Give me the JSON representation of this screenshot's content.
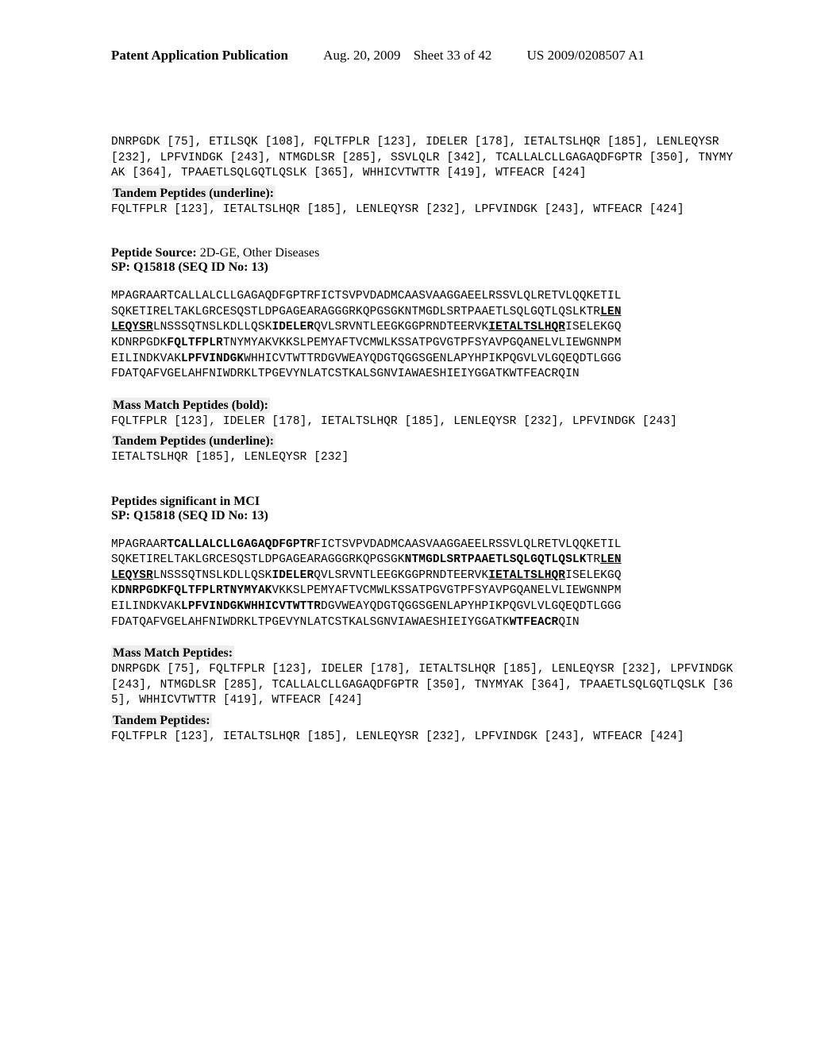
{
  "header": {
    "left": "Patent Application Publication",
    "date": "Aug. 20, 2009",
    "sheet": "Sheet 33 of 42",
    "pub": "US 2009/0208507 A1"
  },
  "block1": {
    "peptides": "DNRPGDK [75], ETILSQK [108], FQLTFPLR [123], IDELER [178], IETALTSLHQR [185], LENLEQYSR [232], LPFVINDGK [243], NTMGDLSR [285], SSVLQLR [342], TCALLALCLLGAGAQDFGPTR [350], TNYMYAK [364], TPAAETLSQLGQTLQSLK [365], WHHICVTWTTR [419], WTFEACR [424]"
  },
  "block1_tandem": {
    "heading": "Tandem Peptides (underline):",
    "peptides": "FQLTFPLR [123], IETALTSLHQR [185], LENLEQYSR [232], LPFVINDGK [243], WTFEACR [424]"
  },
  "source2": {
    "source_label": "Peptide Source:",
    "source_value": " 2D-GE, Other Diseases",
    "sp_line": "SP: Q15818 (SEQ ID No: 13)",
    "seq_p1": "MPAGRAARTCALLALCLLGAGAQDFGPTRFICTSVPVDADMCAASVAAGGAEELRSSVLQLRETVLQQKETIL",
    "seq_p2a": "SQKETIRELTAKLGRCESQSTLDPGAGEARAGGGRKQPGSGKNTMGDLSRTPAAETLSQLGQTLQSLKTR",
    "seq_p2b": "LEN",
    "seq_p3a": "LEQYSR",
    "seq_p3b": "LNSSSQTNSLKDLLQSK",
    "seq_p3c": "IDELER",
    "seq_p3d": "QVLSRVNTLEEGKGGPRNDTEERVK",
    "seq_p3e": "IETALTSLHQR",
    "seq_p3f": "ISELEKGQ",
    "seq_p4a": "KDNRPGDK",
    "seq_p4b": "FQLTFPLR",
    "seq_p4c": "TNYMYAKVKKSLPEMYAFTVCMWLKSSATPGVGTPFSYAVPGQANELVLIEWGNNPM",
    "seq_p5a": "EILINDKVAK",
    "seq_p5b": "LPFVINDGK",
    "seq_p5c": "WHHICVTWTTRDGVWEAYQDGTQGGSGENLAPYHPIKPQGVLVLGQEQDTLGGG",
    "seq_p6": "FDATQAFVGELAHFNIWDRKLTPGEVYNLATCSTKALSGNVIAWAESHIEIYGGATKWTFEACRQIN"
  },
  "block2_mass": {
    "heading": "Mass Match Peptides (bold):",
    "peptides": "FQLTFPLR [123], IDELER [178], IETALTSLHQR [185], LENLEQYSR [232], LPFVINDGK [243]"
  },
  "block2_tandem": {
    "heading": "Tandem Peptides (underline):",
    "peptides": "IETALTSLHQR [185], LENLEQYSR [232]"
  },
  "source3": {
    "sig_line": "Peptides significant in MCI",
    "sp_line": "SP: Q15818 (SEQ ID No: 13)",
    "seq_p1a": "MPAGRAAR",
    "seq_p1b": "TCALLALCLLGAGAQDFGPTR",
    "seq_p1c": "FICTSVPVDADMCAASVAAGGAEELRSSVLQLRETVLQQKETIL",
    "seq_p2a": "SQKETIRELTAKLGRCESQSTLDPGAGEARAGGGRKQPGSGK",
    "seq_p2b": "NTMGDLSRTPAAETLSQLGQTLQSLK",
    "seq_p2c": "TR",
    "seq_p2d": "LEN",
    "seq_p3a": "LEQYSR",
    "seq_p3b": "LNSSSQTNSLKDLLQSK",
    "seq_p3c": "IDELER",
    "seq_p3d": "QVLSRVNTLEEGKGGPRNDTEERVK",
    "seq_p3e": "IETALTSLHQR",
    "seq_p3f": "ISELEKGQ",
    "seq_p4a": "K",
    "seq_p4b": "DNRPGDKFQLTFPLRTNYMYAK",
    "seq_p4c": "VKKSLPEMYAFTVCMWLKSSATPGVGTPFSYAVPGQANELVLIEWGNNPM",
    "seq_p5a": "EILINDKVAK",
    "seq_p5b": "LPFVINDGKWHHICVTWTTR",
    "seq_p5c": "DGVWEAYQDGTQGGSGENLAPYHPIKPQGVLVLGQEQDTLGGG",
    "seq_p6a": "FDATQAFVGELAHFNIWDRKLTPGEVYNLATCSTKALSGNVIAWAESHIEIYGGATK",
    "seq_p6b": "WTFEACR",
    "seq_p6c": "QIN"
  },
  "block3_mass": {
    "heading": "Mass Match Peptides:",
    "peptides": "DNRPGDK [75], FQLTFPLR [123], IDELER [178], IETALTSLHQR [185], LENLEQYSR [232], LPFVINDGK [243], NTMGDLSR [285], TCALLALCLLGAGAQDFGPTR [350], TNYMYAK [364], TPAAETLSQLGQTLQSLK [365], WHHICVTWTTR [419], WTFEACR [424]"
  },
  "block3_tandem": {
    "heading": "Tandem Peptides:",
    "peptides": "FQLTFPLR [123], IETALTSLHQR [185], LENLEQYSR [232], LPFVINDGK [243], WTFEACR [424]"
  }
}
